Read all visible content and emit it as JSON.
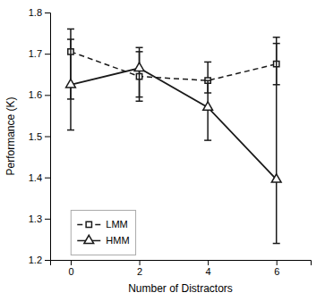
{
  "chart_data": {
    "type": "line",
    "xlabel": "Number of Distractors",
    "ylabel": "Performance (K)",
    "x": [
      0,
      2,
      4,
      6
    ],
    "series": [
      {
        "name": "LMM",
        "color": "#1a1a1a",
        "marker": "square",
        "line_style": "dashed",
        "values": [
          1.705,
          1.645,
          1.635,
          1.675
        ],
        "yerr_lower": [
          0.115,
          0.05,
          0.03,
          0.05
        ],
        "yerr_upper": [
          0.055,
          0.06,
          0.045,
          0.05
        ]
      },
      {
        "name": "HMM",
        "color": "#1a1a1a",
        "marker": "triangle",
        "line_style": "solid",
        "values": [
          1.625,
          1.665,
          1.57,
          1.395
        ],
        "yerr_lower": [
          0.11,
          0.08,
          0.08,
          0.155
        ],
        "yerr_upper": [
          0.11,
          0.05,
          0.065,
          0.345
        ]
      }
    ],
    "xlim": [
      -0.6,
      7.0
    ],
    "ylim": [
      1.2,
      1.8
    ],
    "xticks": [
      0,
      2,
      4,
      6
    ],
    "yticks": [
      1.2,
      1.3,
      1.4,
      1.5,
      1.6,
      1.7,
      1.8
    ],
    "grid": false,
    "legend": "lower left"
  }
}
